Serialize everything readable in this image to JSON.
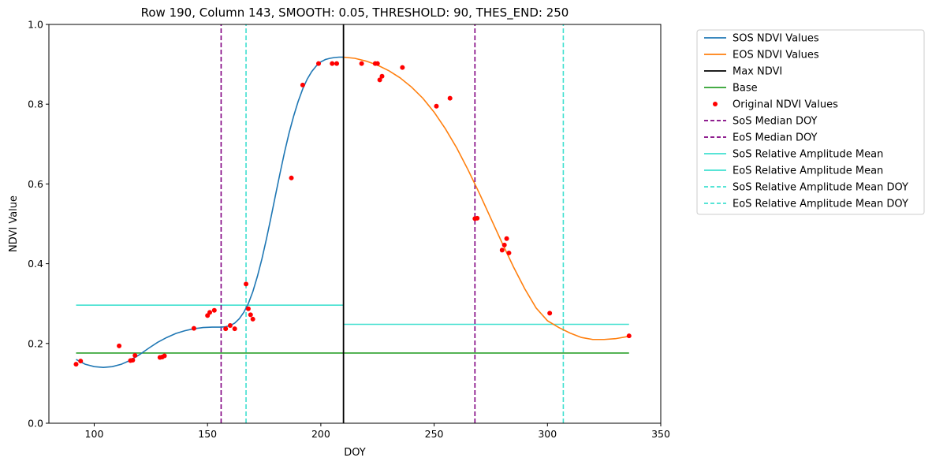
{
  "chart_data": {
    "type": "line",
    "title": "Row 190, Column 143, SMOOTH: 0.05, THRESHOLD: 90, THES_END: 250",
    "xlabel": "DOY",
    "ylabel": "NDVI Value",
    "xlim": [
      80,
      350
    ],
    "ylim": [
      0,
      1
    ],
    "xticks": [
      100,
      150,
      200,
      250,
      300,
      350
    ],
    "yticks": [
      0.0,
      0.2,
      0.4,
      0.6,
      0.8,
      1.0
    ],
    "xtick_labels": [
      "100",
      "150",
      "200",
      "250",
      "300",
      "350"
    ],
    "ytick_labels": [
      "0.0",
      "0.2",
      "0.4",
      "0.6",
      "0.8",
      "1.0"
    ],
    "grid": false,
    "legend_position": "outside-right",
    "series": [
      {
        "name": "SOS NDVI Values",
        "kind": "line",
        "color": "#1f77b4",
        "x": [
          92,
          96,
          100,
          104,
          108,
          112,
          116,
          120,
          124,
          128,
          132,
          136,
          140,
          144,
          148,
          152,
          156,
          158,
          160,
          162,
          164,
          166,
          168,
          170,
          172,
          174,
          176,
          178,
          180,
          182,
          184,
          186,
          188,
          190,
          192,
          194,
          196,
          198,
          200,
          202,
          204,
          206,
          208,
          210
        ],
        "y": [
          0.16,
          0.148,
          0.142,
          0.14,
          0.142,
          0.148,
          0.158,
          0.172,
          0.188,
          0.203,
          0.215,
          0.225,
          0.232,
          0.237,
          0.24,
          0.241,
          0.241,
          0.242,
          0.245,
          0.251,
          0.262,
          0.278,
          0.3,
          0.33,
          0.368,
          0.412,
          0.462,
          0.516,
          0.572,
          0.627,
          0.68,
          0.728,
          0.77,
          0.807,
          0.838,
          0.863,
          0.882,
          0.896,
          0.906,
          0.912,
          0.915,
          0.917,
          0.918,
          0.918
        ]
      },
      {
        "name": "EOS NDVI Values",
        "kind": "line",
        "color": "#ff7f0e",
        "x": [
          210,
          215,
          220,
          225,
          230,
          235,
          240,
          245,
          250,
          255,
          260,
          265,
          270,
          275,
          280,
          285,
          290,
          295,
          300,
          305,
          310,
          315,
          320,
          325,
          330,
          336
        ],
        "y": [
          0.918,
          0.915,
          0.908,
          0.898,
          0.884,
          0.866,
          0.843,
          0.815,
          0.78,
          0.738,
          0.69,
          0.635,
          0.576,
          0.514,
          0.452,
          0.392,
          0.337,
          0.289,
          0.257,
          0.24,
          0.226,
          0.215,
          0.21,
          0.21,
          0.212,
          0.218
        ]
      },
      {
        "name": "Max NDVI",
        "kind": "vline",
        "color": "#000000",
        "x": 210,
        "y_range": [
          0,
          1
        ]
      },
      {
        "name": "Base",
        "kind": "hline",
        "color": "#2ca02c",
        "y": 0.176,
        "x_range": [
          92,
          336
        ]
      },
      {
        "name": "Original NDVI Values",
        "kind": "scatter",
        "color": "#ff0000",
        "points": [
          [
            92,
            0.148
          ],
          [
            94,
            0.156
          ],
          [
            111,
            0.194
          ],
          [
            116,
            0.157
          ],
          [
            117,
            0.158
          ],
          [
            118,
            0.17
          ],
          [
            129,
            0.165
          ],
          [
            130,
            0.166
          ],
          [
            131,
            0.169
          ],
          [
            144,
            0.238
          ],
          [
            150,
            0.27
          ],
          [
            151,
            0.278
          ],
          [
            153,
            0.283
          ],
          [
            158,
            0.237
          ],
          [
            160,
            0.245
          ],
          [
            162,
            0.237
          ],
          [
            167,
            0.349
          ],
          [
            168,
            0.287
          ],
          [
            169,
            0.272
          ],
          [
            170,
            0.261
          ],
          [
            187,
            0.615
          ],
          [
            192,
            0.848
          ],
          [
            199,
            0.902
          ],
          [
            205,
            0.902
          ],
          [
            207,
            0.902
          ],
          [
            218,
            0.902
          ],
          [
            224,
            0.902
          ],
          [
            225,
            0.902
          ],
          [
            226,
            0.861
          ],
          [
            227,
            0.87
          ],
          [
            236,
            0.892
          ],
          [
            251,
            0.795
          ],
          [
            257,
            0.815
          ],
          [
            268,
            0.513
          ],
          [
            269,
            0.514
          ],
          [
            280,
            0.434
          ],
          [
            281,
            0.447
          ],
          [
            282,
            0.463
          ],
          [
            283,
            0.427
          ],
          [
            301,
            0.276
          ],
          [
            336,
            0.219
          ]
        ]
      },
      {
        "name": "SoS Median DOY",
        "kind": "vline",
        "color": "#800080",
        "dashed": true,
        "x": 156,
        "y_range": [
          0,
          1
        ]
      },
      {
        "name": "EoS Median DOY",
        "kind": "vline",
        "color": "#800080",
        "dashed": true,
        "x": 268,
        "y_range": [
          0,
          1
        ]
      },
      {
        "name": "SoS Relative Amplitude Mean",
        "kind": "hline",
        "color": "#40e0d0",
        "y": 0.296,
        "x_range": [
          92,
          210
        ]
      },
      {
        "name": "EoS Relative Amplitude Mean",
        "kind": "hline",
        "color": "#40e0d0",
        "y": 0.248,
        "x_range": [
          210,
          336
        ]
      },
      {
        "name": "SoS Relative Amplitude Mean DOY",
        "kind": "vline",
        "color": "#40e0d0",
        "dashed": true,
        "x": 167,
        "y_range": [
          0,
          1
        ]
      },
      {
        "name": "EoS Relative Amplitude Mean DOY",
        "kind": "vline",
        "color": "#40e0d0",
        "dashed": true,
        "x": 307,
        "y_range": [
          0,
          1
        ]
      }
    ]
  }
}
